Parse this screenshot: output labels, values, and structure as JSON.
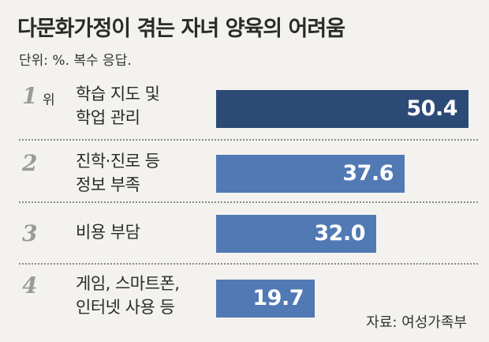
{
  "title": "다문화가정이 겪는 자녀 양육의 어려움",
  "unit_note": "단위: %. 복수 응답.",
  "source": "자료: 여성가족부",
  "rank_suffix": "위",
  "colors": {
    "top": "#2c4a76",
    "others": "#5179b4",
    "background": "#f3f2ee"
  },
  "chart_data": {
    "type": "bar",
    "orientation": "horizontal",
    "title": "다문화가정이 겪는 자녀 양육의 어려움",
    "xlim": [
      0,
      55
    ],
    "items": [
      {
        "rank": "1",
        "label_lines": [
          "학습 지도 및",
          "학업 관리"
        ],
        "value": 50.4,
        "value_label": "50.4"
      },
      {
        "rank": "2",
        "label_lines": [
          "진학·진로 등",
          "정보 부족"
        ],
        "value": 37.6,
        "value_label": "37.6"
      },
      {
        "rank": "3",
        "label_lines": [
          "비용 부담"
        ],
        "value": 32.0,
        "value_label": "32.0"
      },
      {
        "rank": "4",
        "label_lines": [
          "게임, 스마트폰,",
          "인터넷 사용 등"
        ],
        "value": 19.7,
        "value_label": "19.7"
      }
    ]
  }
}
